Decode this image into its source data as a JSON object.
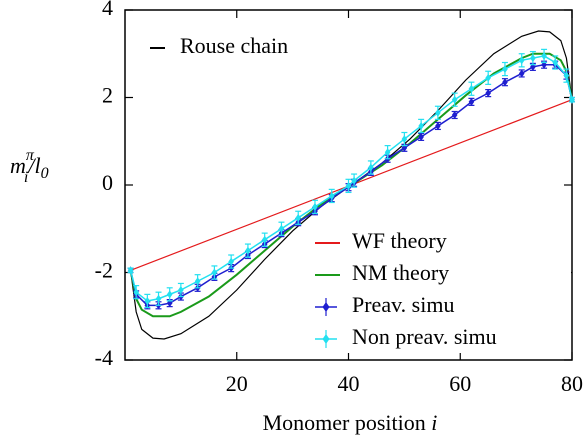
{
  "chart_data": {
    "type": "line",
    "x_label": {
      "text": "Monomer position ",
      "var": "i"
    },
    "y_label": {
      "base": "m",
      "sup": "π",
      "sub": "i",
      "rest": "/l",
      "rest_sub": "0"
    },
    "xlim": [
      0,
      80
    ],
    "ylim": [
      -4,
      4
    ],
    "xticks": [
      20,
      40,
      60,
      80
    ],
    "yticks": [
      -4,
      -2,
      0,
      2,
      4
    ],
    "series": [
      {
        "name": "Rouse chain",
        "color": "#000000",
        "legend_loc": "upper left",
        "x": [
          1,
          2,
          3,
          5,
          7,
          10,
          15,
          20,
          25,
          30,
          35,
          40.5,
          46,
          51,
          56,
          61,
          66,
          71,
          74,
          76,
          78,
          79,
          80
        ],
        "values": [
          -1.95,
          -2.9,
          -3.3,
          -3.5,
          -3.52,
          -3.4,
          -3.0,
          -2.4,
          -1.7,
          -1.05,
          -0.5,
          0,
          0.5,
          1.05,
          1.7,
          2.4,
          3.0,
          3.4,
          3.52,
          3.5,
          3.3,
          2.9,
          1.95
        ]
      },
      {
        "name": "WF theory",
        "color": "#e41a1c",
        "legend_loc": "lower right",
        "x": [
          1,
          80
        ],
        "values": [
          -1.95,
          1.95
        ]
      },
      {
        "name": "NM theory",
        "color": "#1a9a1a",
        "legend_loc": "lower right",
        "x": [
          1,
          2,
          3,
          5,
          8,
          10,
          15,
          20,
          25,
          30,
          35,
          40.5,
          46,
          51,
          56,
          61,
          66,
          71,
          73,
          76,
          78,
          79,
          80
        ],
        "values": [
          -1.95,
          -2.6,
          -2.85,
          -3.0,
          -3.0,
          -2.9,
          -2.55,
          -2.05,
          -1.5,
          -0.95,
          -0.45,
          0,
          0.45,
          0.95,
          1.5,
          2.05,
          2.55,
          2.9,
          3.0,
          3.0,
          2.85,
          2.6,
          1.95
        ]
      },
      {
        "name": "Preav. simu",
        "color": "#1f1fd0",
        "legend_loc": "lower right",
        "x": [
          1,
          2,
          4,
          6,
          8,
          10,
          13,
          16,
          19,
          22,
          25,
          28,
          31,
          34,
          37,
          40,
          41,
          44,
          47,
          50,
          53,
          56,
          59,
          62,
          65,
          68,
          71,
          73,
          75,
          77,
          79,
          80
        ],
        "values": [
          -1.95,
          -2.5,
          -2.75,
          -2.75,
          -2.7,
          -2.55,
          -2.35,
          -2.1,
          -1.9,
          -1.6,
          -1.35,
          -1.1,
          -0.85,
          -0.6,
          -0.3,
          -0.05,
          0.05,
          0.3,
          0.6,
          0.85,
          1.1,
          1.35,
          1.6,
          1.9,
          2.1,
          2.35,
          2.55,
          2.7,
          2.75,
          2.75,
          2.5,
          1.95
        ],
        "errors": [
          0.05,
          0.08,
          0.08,
          0.08,
          0.08,
          0.08,
          0.08,
          0.08,
          0.08,
          0.08,
          0.08,
          0.08,
          0.08,
          0.08,
          0.08,
          0.08,
          0.08,
          0.08,
          0.08,
          0.08,
          0.08,
          0.08,
          0.08,
          0.08,
          0.08,
          0.08,
          0.08,
          0.08,
          0.08,
          0.08,
          0.08,
          0.05
        ]
      },
      {
        "name": "Non preav. simu",
        "color": "#22e0f0",
        "legend_loc": "lower right",
        "x": [
          1,
          2,
          4,
          6,
          8,
          10,
          13,
          16,
          19,
          22,
          25,
          28,
          31,
          34,
          37,
          40,
          41,
          44,
          47,
          50,
          53,
          56,
          59,
          62,
          65,
          68,
          71,
          73,
          75,
          77,
          79,
          80
        ],
        "values": [
          -1.95,
          -2.45,
          -2.65,
          -2.6,
          -2.5,
          -2.4,
          -2.2,
          -2.0,
          -1.75,
          -1.5,
          -1.25,
          -1.0,
          -0.75,
          -0.5,
          -0.25,
          -0.02,
          0.1,
          0.4,
          0.75,
          1.05,
          1.35,
          1.65,
          1.95,
          2.2,
          2.45,
          2.65,
          2.85,
          2.9,
          2.95,
          2.8,
          2.5,
          1.95
        ],
        "errors": [
          0.05,
          0.15,
          0.15,
          0.15,
          0.15,
          0.15,
          0.15,
          0.15,
          0.15,
          0.15,
          0.15,
          0.15,
          0.15,
          0.15,
          0.15,
          0.15,
          0.15,
          0.15,
          0.15,
          0.15,
          0.15,
          0.15,
          0.15,
          0.15,
          0.15,
          0.15,
          0.15,
          0.15,
          0.15,
          0.15,
          0.15,
          0.05
        ]
      }
    ]
  }
}
